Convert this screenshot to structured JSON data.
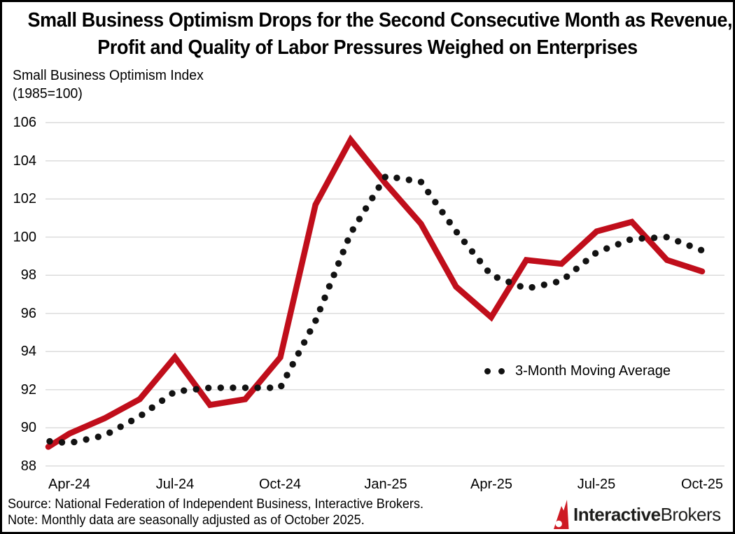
{
  "title": {
    "line1": "Small Business Optimism Drops for the Second Consecutive Month as Revenue,",
    "line2": "Profit and Quality of Labor Pressures Weighed on Enterprises"
  },
  "axis_title": {
    "line1": "Small Business Optimism Index",
    "line2": "(1985=100)"
  },
  "legend": {
    "label": "3-Month Moving Average"
  },
  "source_note": {
    "source": "Source: National Federation of Independent Business, Interactive Brokers.",
    "note": "Note: Monthly data are seasonally adjusted as of October 2025."
  },
  "logo": {
    "bold": "Interactive",
    "regular": "Brokers"
  },
  "colors": {
    "line_red": "#C00E1B",
    "ma_black": "#121212",
    "grid": "#D9D9D9",
    "text": "#000000",
    "logo_red": "#CE1A23",
    "logo_text": "#1d1d1b"
  },
  "chart_data": {
    "type": "line",
    "title": "Small Business Optimism Drops for the Second Consecutive Month as Revenue, Profit and Quality of Labor Pressures Weighed on Enterprises",
    "ylabel": "Small Business Optimism Index (1985=100)",
    "ylim": [
      88,
      106
    ],
    "grid": "horizontal",
    "legend_position": "right-middle",
    "y_ticks": [
      88,
      90,
      92,
      94,
      96,
      98,
      100,
      102,
      104,
      106
    ],
    "x_tick_labels": [
      "Apr-24",
      "Jul-24",
      "Oct-24",
      "Jan-25",
      "Apr-25",
      "Jul-25",
      "Oct-25"
    ],
    "categories": [
      "Apr-24",
      "May-24",
      "Jun-24",
      "Jul-24",
      "Aug-24",
      "Sep-24",
      "Oct-24",
      "Nov-24",
      "Dec-24",
      "Jan-25",
      "Feb-25",
      "Mar-25",
      "Apr-25",
      "May-25",
      "Jun-25",
      "Jul-25",
      "Aug-25",
      "Sep-25",
      "Oct-25"
    ],
    "series": [
      {
        "name": "Small Business Optimism Index",
        "style": "solid",
        "color": "#C00E1B",
        "values": [
          89.7,
          90.5,
          91.5,
          93.7,
          91.2,
          91.5,
          93.7,
          101.7,
          105.1,
          102.8,
          100.7,
          97.4,
          95.8,
          98.8,
          98.6,
          100.3,
          100.8,
          98.8,
          98.2
        ]
      },
      {
        "name": "3-Month Moving Average",
        "style": "dotted",
        "color": "#121212",
        "values": [
          89.2,
          89.6,
          90.6,
          91.9,
          92.1,
          92.1,
          92.1,
          95.6,
          100.2,
          103.2,
          102.9,
          100.3,
          98.0,
          97.3,
          97.7,
          99.2,
          99.9,
          100.0,
          99.3
        ]
      }
    ],
    "left_clip_values": {
      "index": 89.0,
      "moving_average": 89.3
    }
  }
}
